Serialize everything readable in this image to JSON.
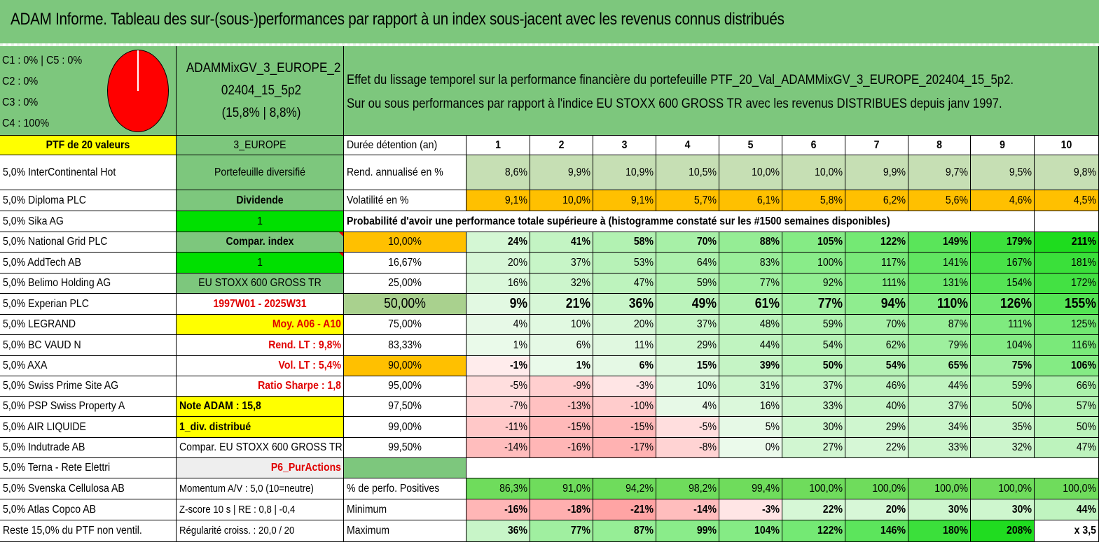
{
  "title": "ADAM Informe. Tableau des sur-(sous-)performances par rapport à un index sous-jacent avec les revenus connus distribués",
  "pie_legend": [
    "C1 : 0% | C5 : 0%",
    "C2 : 0%",
    "C3 : 0%",
    "C4 : 100%"
  ],
  "pie_icon": "pie-chart-icon",
  "fund_name": [
    "ADAMMixGV_3_EUROPE_2",
    "02404_15_5p2",
    "(15,8% | 8,8%)"
  ],
  "description": [
    "Effet du lissage temporel sur la performance financière du portefeuille PTF_20_Val_ADAMMixGV_3_EUROPE_202404_15_5p2.",
    "Sur ou sous performances par rapport à l'indice EU STOXX 600 GROSS TR avec les revenus DISTRIBUES depuis janv 1997."
  ],
  "ptf_header": "PTF de 20 valeurs",
  "holdings": [
    "5,0% InterContinental Hot",
    "5,0% Diploma PLC",
    "5,0% Sika AG",
    "5,0% National Grid PLC",
    "5,0% AddTech AB",
    "5,0% Belimo Holding AG",
    "5,0% Experian PLC",
    "5,0% LEGRAND",
    "5,0% BC VAUD N",
    "5,0% AXA",
    "5,0% Swiss Prime Site AG",
    "5,0% PSP Swiss Property A",
    "5,0% AIR LIQUIDE",
    "5,0% Indutrade AB",
    "5,0% Terna - Rete Elettri",
    "5,0% Svenska Cellulosa AB",
    "5,0% Atlas Copco AB",
    "Reste 15,0% du PTF non ventil."
  ],
  "info_col": [
    "3_EUROPE",
    "Portefeuille diversifié",
    "Dividende",
    "1",
    "Compar. index",
    "1",
    "EU STOXX 600 GROSS TR",
    "1997W01 - 2025W31",
    "Moy. A06 - A10",
    "Rend. LT : 9,8%",
    "Vol. LT : 5,4%",
    "Ratio Sharpe : 1,8",
    "Note ADAM : 15,8",
    "1_div. distribué",
    "Compar. EU STOXX 600 GROSS TR",
    "P6_PurActions",
    "Momentum A/V : 5,0 (10=neutre)",
    "Z-score 10 s | RE : 0,8 | -0,4",
    "Régularité croiss. : 20,0 / 20"
  ],
  "duration_label": "Durée détention (an)",
  "years": [
    "1",
    "2",
    "3",
    "4",
    "5",
    "6",
    "7",
    "8",
    "9",
    "10"
  ],
  "rend_label": "Rend. annualisé en %",
  "rend": [
    "8,6%",
    "9,9%",
    "10,9%",
    "10,5%",
    "10,0%",
    "10,0%",
    "9,9%",
    "9,7%",
    "9,5%",
    "9,8%"
  ],
  "vol_label": "Volatilité en %",
  "vol": [
    "9,1%",
    "10,0%",
    "9,1%",
    "5,7%",
    "6,1%",
    "5,8%",
    "6,2%",
    "5,6%",
    "4,6%",
    "4,5%"
  ],
  "proba_label": "Probabilité d'avoir une performance totale supérieure à (histogramme constaté sur les #1500 semaines disponibles)",
  "quantiles": [
    {
      "p": "10,00%",
      "v": [
        "24%",
        "41%",
        "58%",
        "70%",
        "88%",
        "105%",
        "122%",
        "149%",
        "179%",
        "211%"
      ]
    },
    {
      "p": "16,67%",
      "v": [
        "20%",
        "37%",
        "53%",
        "64%",
        "83%",
        "100%",
        "117%",
        "141%",
        "167%",
        "181%"
      ]
    },
    {
      "p": "25,00%",
      "v": [
        "16%",
        "32%",
        "47%",
        "59%",
        "77%",
        "92%",
        "111%",
        "131%",
        "154%",
        "172%"
      ]
    },
    {
      "p": "50,00%",
      "v": [
        "9%",
        "21%",
        "36%",
        "49%",
        "61%",
        "77%",
        "94%",
        "110%",
        "126%",
        "155%"
      ]
    },
    {
      "p": "75,00%",
      "v": [
        "4%",
        "10%",
        "20%",
        "37%",
        "48%",
        "59%",
        "70%",
        "87%",
        "111%",
        "125%"
      ]
    },
    {
      "p": "83,33%",
      "v": [
        "1%",
        "6%",
        "11%",
        "29%",
        "44%",
        "54%",
        "62%",
        "79%",
        "104%",
        "116%"
      ]
    },
    {
      "p": "90,00%",
      "v": [
        "-1%",
        "1%",
        "6%",
        "15%",
        "39%",
        "50%",
        "54%",
        "65%",
        "75%",
        "106%"
      ]
    },
    {
      "p": "95,00%",
      "v": [
        "-5%",
        "-9%",
        "-3%",
        "10%",
        "31%",
        "37%",
        "46%",
        "44%",
        "59%",
        "66%"
      ]
    },
    {
      "p": "97,50%",
      "v": [
        "-7%",
        "-13%",
        "-10%",
        "4%",
        "16%",
        "33%",
        "40%",
        "37%",
        "50%",
        "57%"
      ]
    },
    {
      "p": "99,00%",
      "v": [
        "-11%",
        "-15%",
        "-15%",
        "-5%",
        "5%",
        "30%",
        "29%",
        "34%",
        "35%",
        "50%"
      ]
    },
    {
      "p": "99,50%",
      "v": [
        "-14%",
        "-16%",
        "-17%",
        "-8%",
        "0%",
        "27%",
        "22%",
        "33%",
        "32%",
        "47%"
      ]
    }
  ],
  "pos_label": "% de perfo. Positives",
  "pos": [
    "86,3%",
    "91,0%",
    "94,2%",
    "98,2%",
    "99,4%",
    "100,0%",
    "100,0%",
    "100,0%",
    "100,0%",
    "100,0%"
  ],
  "min_label": "Minimum",
  "min": [
    "-16%",
    "-18%",
    "-21%",
    "-14%",
    "-3%",
    "22%",
    "20%",
    "30%",
    "30%",
    "44%"
  ],
  "max_label": "Maximum",
  "max": [
    "36%",
    "77%",
    "87%",
    "99%",
    "104%",
    "122%",
    "146%",
    "180%",
    "208%",
    "x 3,5"
  ],
  "colors": {
    "header_green": "#7dc77d",
    "yellow": "#ffff00",
    "orange": "#ffc000",
    "bright_green": "#00e000",
    "red_text": "#e00000",
    "pie_red": "#ff0000"
  }
}
